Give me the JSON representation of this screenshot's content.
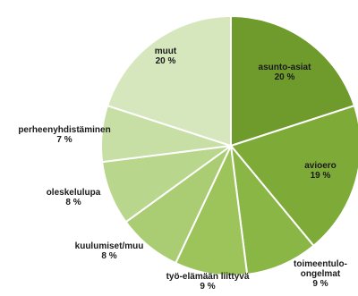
{
  "chart_data": {
    "type": "pie",
    "title": "",
    "slices": [
      {
        "name": "asunto-asiat",
        "value": 20,
        "label": "20 %",
        "color": "#6f9a2c"
      },
      {
        "name": "avioero",
        "value": 19,
        "label": "19 %",
        "color": "#7eaa38"
      },
      {
        "name": "toimeentulo-ongelmat",
        "value": 9,
        "label": "9 %",
        "color": "#8ab646"
      },
      {
        "name": "työ-elämään liittyvä",
        "value": 9,
        "label": "9 %",
        "color": "#9cc45a"
      },
      {
        "name": "kuulumiset/muu",
        "value": 8,
        "label": "8 %",
        "color": "#aacd73"
      },
      {
        "name": "oleskelulupa",
        "value": 8,
        "label": "8 %",
        "color": "#b9d78c"
      },
      {
        "name": "perheenyhdistäminen",
        "value": 7,
        "label": "7 %",
        "color": "#c7dea5"
      },
      {
        "name": "muut",
        "value": 20,
        "label": "20 %",
        "color": "#d6e7be"
      }
    ],
    "legend": "none",
    "label_position": "inside-and-outside"
  }
}
